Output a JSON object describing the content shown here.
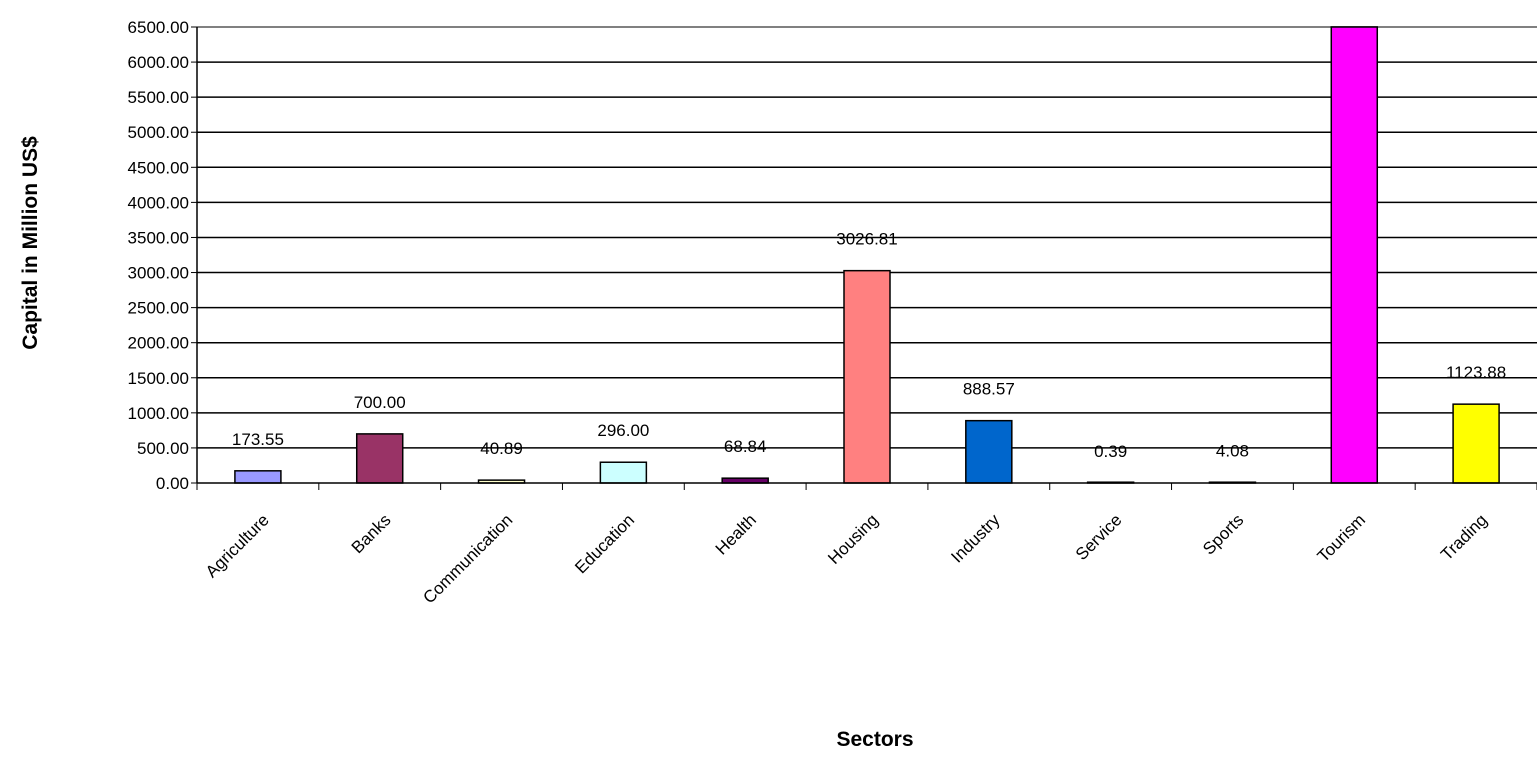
{
  "chart_data": {
    "type": "bar",
    "title": "",
    "xlabel": "Sectors",
    "ylabel": "Capital in Million US$",
    "categories": [
      "Agriculture",
      "Banks",
      "Communication",
      "Education",
      "Health",
      "Housing",
      "Industry",
      "Service",
      "Sports",
      "Tourism",
      "Trading"
    ],
    "values": [
      173.55,
      700.0,
      40.89,
      296.0,
      68.84,
      3026.81,
      888.57,
      0.39,
      4.08,
      6500.0,
      1123.88
    ],
    "value_labels": [
      "173.55",
      "700.00",
      "40.89",
      "296.00",
      "68.84",
      "3026.81",
      "888.57",
      "0.39",
      "4.08",
      "",
      "1123.88"
    ],
    "colors": [
      "#9999ff",
      "#993366",
      "#ffffcc",
      "#ccffff",
      "#660066",
      "#ff8080",
      "#0066cc",
      "#ccccff",
      "#000080",
      "#ff00ff",
      "#ffff00"
    ],
    "ylim": [
      0,
      6500
    ],
    "yticks": [
      "0.00",
      "500.00",
      "1000.00",
      "1500.00",
      "2000.00",
      "2500.00",
      "3000.00",
      "3500.00",
      "4000.00",
      "4500.00",
      "5000.00",
      "5500.00",
      "6000.00",
      "6500.00"
    ],
    "grid": true,
    "legend": "none"
  }
}
